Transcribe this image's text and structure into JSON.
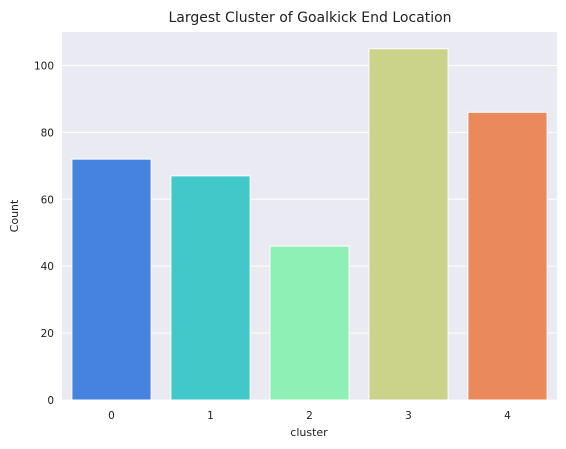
{
  "chart_data": {
    "type": "bar",
    "title": "Largest Cluster of Goalkick End Location",
    "xlabel": "cluster",
    "ylabel": "Count",
    "categories": [
      "0",
      "1",
      "2",
      "3",
      "4"
    ],
    "values": [
      72,
      67,
      46,
      105,
      86
    ],
    "colors": [
      "#4682e0",
      "#41c8c8",
      "#8ff0b4",
      "#cbd28a",
      "#ea8a5c"
    ],
    "ylim": [
      0,
      110
    ],
    "yticks": [
      0,
      20,
      40,
      60,
      80,
      100
    ],
    "ytick_labels": [
      "0",
      "20",
      "40",
      "60",
      "80",
      "100"
    ],
    "grid": true,
    "background": "#eaeaf2",
    "grid_color": "#ffffff",
    "legend": "none"
  }
}
